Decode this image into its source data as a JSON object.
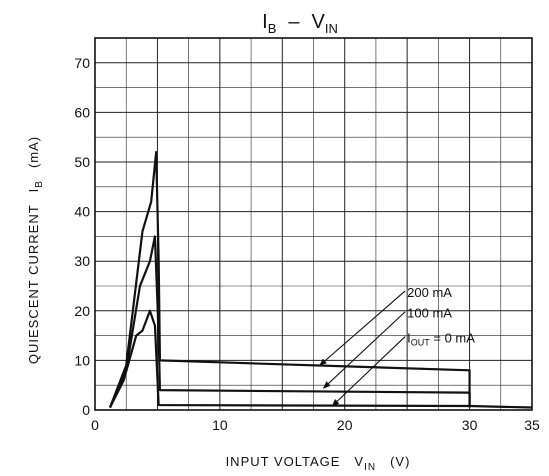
{
  "chart_data": {
    "type": "line",
    "title": "IB – VIN",
    "title_parts": {
      "main1": "I",
      "sub1": "B",
      "dash": "–",
      "main2": "V",
      "sub2": "IN"
    },
    "xlabel": "INPUT VOLTAGE",
    "xlabel_parts": {
      "main": "INPUT VOLTAGE",
      "sym": "V",
      "sub": "IN",
      "unit": "(V)"
    },
    "ylabel": "QUIESCENT CURRENT IB (mA)",
    "ylabel_parts": {
      "main": "QUIESCENT CURRENT",
      "sym": "I",
      "sub": "B",
      "unit": "(mA)"
    },
    "xlim": [
      0,
      35
    ],
    "ylim": [
      0,
      75
    ],
    "x_major_ticks": [
      0,
      10,
      20,
      30,
      35
    ],
    "y_major_ticks": [
      0,
      10,
      20,
      30,
      40,
      50,
      60,
      70
    ],
    "x_tick_labels": [
      "0",
      "10",
      "20",
      "30",
      "35"
    ],
    "y_tick_labels": [
      "0",
      "10",
      "20",
      "30",
      "40",
      "50",
      "60",
      "70"
    ],
    "grid": true,
    "series": [
      {
        "name": "200 mA",
        "x": [
          1.2,
          2.5,
          3.8,
          4.5,
          4.9,
          5.1,
          5.2,
          30.0,
          30.0
        ],
        "y": [
          0.5,
          9,
          36,
          42,
          52,
          30,
          10,
          8,
          0.5
        ]
      },
      {
        "name": "100 mA",
        "x": [
          1.2,
          2.5,
          3.6,
          4.4,
          4.8,
          5.1,
          5.2,
          30.0,
          30.0
        ],
        "y": [
          0.5,
          8,
          25,
          30,
          35,
          15,
          4,
          3.5,
          0.5
        ]
      },
      {
        "name": "IOUT = 0 mA",
        "x": [
          1.2,
          2.3,
          3.3,
          3.8,
          4.4,
          4.8,
          5.1,
          30.0,
          35.0
        ],
        "y": [
          0.5,
          6,
          15,
          16,
          20,
          17,
          1,
          0.8,
          0.5
        ]
      }
    ],
    "annotations": [
      {
        "text": "200 mA",
        "x": 25.0,
        "y": 22.8,
        "arrow_to": [
          18.0,
          9.0
        ]
      },
      {
        "text": "100 mA",
        "x": 25.0,
        "y": 18.6,
        "arrow_to": [
          18.3,
          4.4
        ]
      },
      {
        "text_main": "I",
        "text_sub": "OUT",
        "text_rest": " = 0 mA",
        "x": 25.0,
        "y": 13.6,
        "arrow_to": [
          19.0,
          0.8
        ]
      }
    ]
  }
}
